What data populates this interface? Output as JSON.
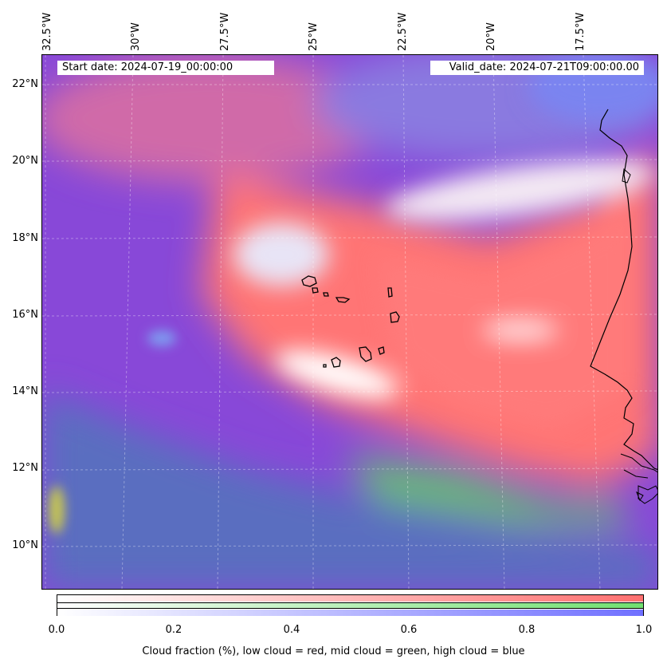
{
  "map": {
    "start_date": "Start date: 2024-07-19_00:00:00",
    "valid_date": "Valid_date: 2024-07-21T09:00:00.00",
    "lon_labels": [
      "32.5°W",
      "30°W",
      "27.5°W",
      "25°W",
      "22.5°W",
      "20°W",
      "17.5°W"
    ],
    "lat_labels": [
      "22°N",
      "20°N",
      "18°N",
      "16°N",
      "14°N",
      "12°N",
      "10°N"
    ],
    "extent": {
      "lon_min": -32.6,
      "lon_max": -15.3,
      "lat_min": 8.9,
      "lat_max": 22.8
    }
  },
  "colorbar": {
    "ticks": [
      "0.0",
      "0.2",
      "0.4",
      "0.6",
      "0.8",
      "1.0"
    ],
    "label": "Cloud fraction (%), low cloud = red, mid cloud = green, high cloud = blue",
    "colors": {
      "low": "#ff7070",
      "mid": "#70e070",
      "high": "#7070ff"
    }
  }
}
